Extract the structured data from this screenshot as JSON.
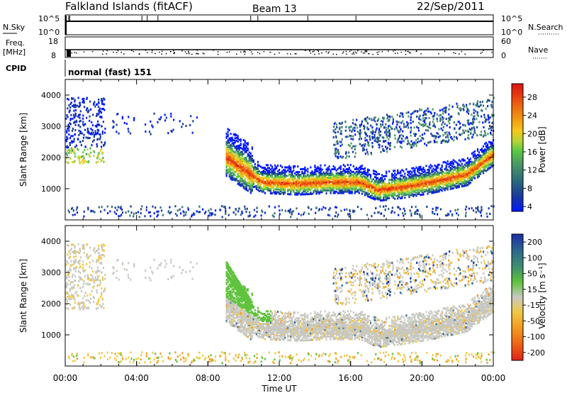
{
  "header": {
    "station": "Falkland Islands (fitACF)",
    "beam": "Beam 13",
    "date": "22/Sep/2011"
  },
  "top_panels": {
    "nsky": {
      "label": "N.Sky",
      "ticks": [
        "10^5",
        "10^0"
      ]
    },
    "nsearch": {
      "label": "N.Search",
      "ticks": [
        "10^5",
        "10^0"
      ]
    },
    "freq": {
      "label_line1": "Freq.",
      "label_line2": "[MHz]",
      "ticks": [
        "18",
        "8"
      ]
    },
    "nave": {
      "label": "Nave",
      "ticks": [
        "60",
        "0"
      ]
    },
    "cpid": {
      "label": "CPID",
      "value": "normal (fast) 151"
    }
  },
  "chart_data": [
    {
      "type": "heatmap",
      "name": "power",
      "ylabel": "Slant Range [km]",
      "xlabel": "",
      "ylim": [
        0,
        4500
      ],
      "yticks": [
        "4000",
        "3000",
        "2000",
        "1000"
      ],
      "colorbar": {
        "label": "Power [dB]",
        "ticks": [
          "28",
          "24",
          "20",
          "16",
          "12",
          "8",
          "4"
        ],
        "colors": [
          "#0018ff",
          "#1a3a9a",
          "#2d6e7a",
          "#4e9a64",
          "#58c844",
          "#b6d435",
          "#f4c81a",
          "#f29b12",
          "#ee6a10",
          "#e63a10",
          "#d91616"
        ]
      },
      "echo_bands": [
        {
          "x": [
            9.0,
            11.0,
            13.0,
            15.0,
            16.5,
            17.5,
            19.0,
            20.5,
            22.5,
            24.0
          ],
          "y": [
            2000,
            1200,
            1150,
            1200,
            1200,
            950,
            1050,
            1200,
            1450,
            2100
          ]
        }
      ]
    },
    {
      "type": "heatmap",
      "name": "velocity",
      "ylabel": "Slant Range [km]",
      "xlabel": "Time UT",
      "ylim": [
        0,
        4500
      ],
      "yticks": [
        "4000",
        "3000",
        "2000",
        "1000"
      ],
      "xticks": [
        "00:00",
        "04:00",
        "08:00",
        "12:00",
        "16:00",
        "20:00",
        "00:00"
      ],
      "colorbar": {
        "label": "Velocity [m s⁻¹]",
        "ticks": [
          "200",
          "100",
          "50",
          "15",
          "-15",
          "-50",
          "-100",
          "-200"
        ],
        "colors": [
          "#1a2fa8",
          "#2e6a8a",
          "#3f8f6e",
          "#60c23e",
          "#c8c8c2",
          "#f0c846",
          "#f29b20",
          "#ef6a18",
          "#e0221a"
        ]
      }
    }
  ]
}
